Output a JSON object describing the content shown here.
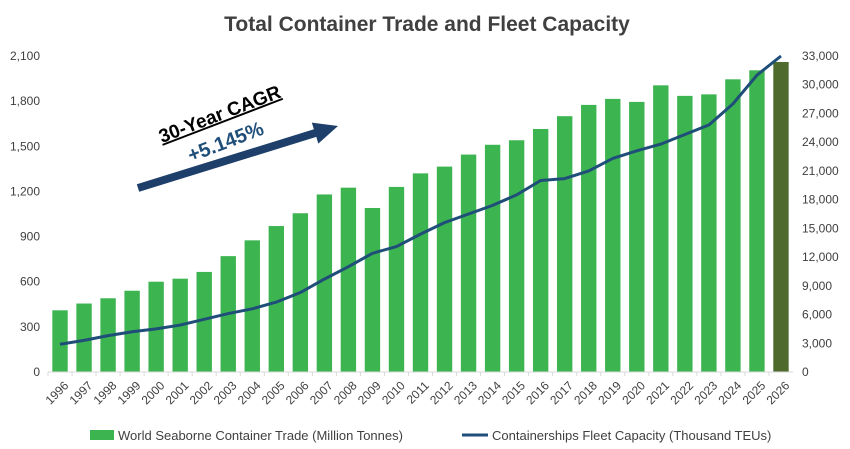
{
  "colors": {
    "bar": "#3CB450",
    "bar_highlight": "#4E6B2D",
    "line": "#1F4E79",
    "arrow": "#1F3F6B",
    "axis": "#D9D9D9",
    "text": "#404040"
  },
  "chart_data": {
    "type": "bar",
    "title": "Total Container Trade and Fleet Capacity",
    "categories": [
      "1996",
      "1997",
      "1998",
      "1999",
      "2000",
      "2001",
      "2002",
      "2003",
      "2004",
      "2005",
      "2006",
      "2007",
      "2008",
      "2009",
      "2010",
      "2011",
      "2012",
      "2013",
      "2014",
      "2015",
      "2016",
      "2017",
      "2018",
      "2019",
      "2020",
      "2021",
      "2022",
      "2023",
      "2024",
      "2025",
      "2026"
    ],
    "series": [
      {
        "name": "World Seaborne Container Trade (Million Tonnes)",
        "type": "bar",
        "axis": "left",
        "values": [
          410,
          455,
          490,
          540,
          600,
          620,
          665,
          770,
          875,
          970,
          1055,
          1180,
          1225,
          1090,
          1230,
          1320,
          1365,
          1445,
          1510,
          1540,
          1615,
          1700,
          1775,
          1815,
          1795,
          1905,
          1835,
          1845,
          1945,
          2005,
          2060
        ]
      },
      {
        "name": "Containerships Fleet Capacity (Thousand TEUs)",
        "type": "line",
        "axis": "right",
        "values": [
          2900,
          3300,
          3800,
          4200,
          4500,
          4900,
          5500,
          6100,
          6600,
          7300,
          8300,
          9700,
          11000,
          12400,
          13100,
          14400,
          15600,
          16500,
          17400,
          18500,
          20000,
          20200,
          21000,
          22300,
          23100,
          23800,
          24800,
          25800,
          28000,
          31000,
          33000
        ]
      }
    ],
    "y_left": {
      "min": 0,
      "max": 2100,
      "ticks": [
        "0",
        "300",
        "600",
        "900",
        "1,200",
        "1,500",
        "1,800",
        "2,100"
      ]
    },
    "y_right": {
      "min": 0,
      "max": 33000,
      "ticks": [
        "0",
        "3,000",
        "6,000",
        "9,000",
        "12,000",
        "15,000",
        "18,000",
        "21,000",
        "24,000",
        "27,000",
        "30,000",
        "33,000"
      ]
    },
    "grid": false,
    "legend_position": "bottom",
    "annotation": {
      "label": "30-Year CAGR",
      "value": "+5.145%"
    }
  }
}
